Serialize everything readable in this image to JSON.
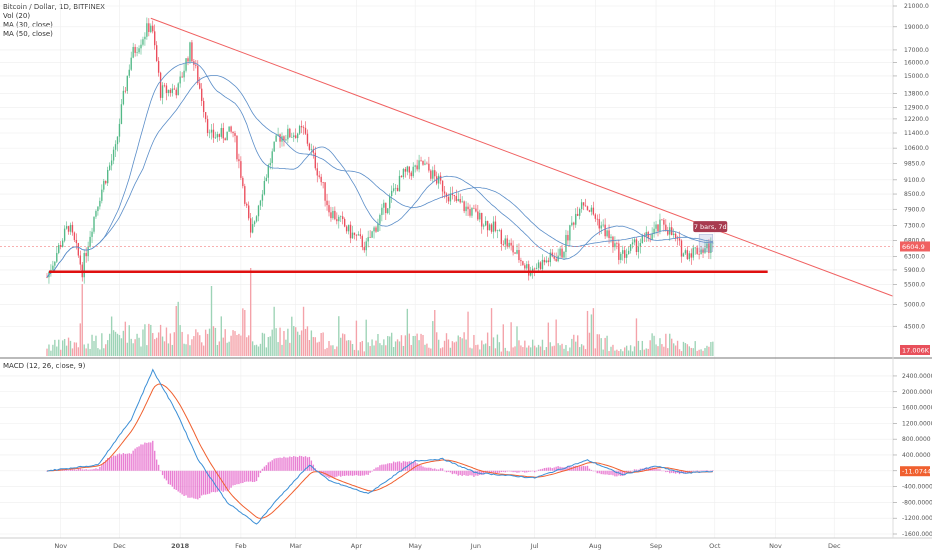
{
  "legend_main": [
    "Bitcoin / Dollar, 1D, BITFINEX",
    "Vol (20)",
    "MA (30, close)",
    "MA (50, close)"
  ],
  "legend_macd": "MACD (12, 26, close, 9)",
  "price_label": "6604.9",
  "vol_label": "17.006K",
  "macd_label": "-11.0744",
  "annotation": "7 bars, 7d",
  "colors": {
    "up": "#53b987",
    "down": "#eb4d5c",
    "vol_up": "#9dd3b6",
    "vol_down": "#f4a2a9",
    "ma30": "#5a8dc8",
    "ma50": "#5a8dc8",
    "macd_line": "#3c8fd6",
    "signal_line": "#f0602f",
    "hist": "#e254c4",
    "trend": "#f06060",
    "support": "#e01010",
    "price_tag": "#f06060",
    "annotation_bg": "#a83a4f",
    "grid": "#eeeeee"
  },
  "chart_data": {
    "type": "candlestick",
    "x_axis_labels": [
      "Nov",
      "Dec",
      "2018",
      "Feb",
      "Mar",
      "Apr",
      "May",
      "Jun",
      "Jul",
      "Aug",
      "Sep",
      "Oct",
      "Nov",
      "Dec"
    ],
    "price_axis_ticks": [
      "21000.0",
      "19000.0",
      "17000.0",
      "16000.0",
      "15000.0",
      "13800.0",
      "12900.0",
      "12200.0",
      "11400.0",
      "10600.0",
      "9850.0",
      "9100.0",
      "8500.0",
      "7900.0",
      "7300.0",
      "6800.0",
      "6300.0",
      "5900.0",
      "5500.0",
      "5000.0",
      "4500.0"
    ],
    "macd_axis_ticks": [
      "2400.0000",
      "2000.0000",
      "1600.0000",
      "1200.0000",
      "800.0000",
      "400.0000",
      "0.0000",
      "-400.0000",
      "-800.0000",
      "-1200.0000",
      "-1600.0000"
    ],
    "price_key_points": [
      [
        "2017-10-25",
        5700
      ],
      [
        "2017-11-05",
        7300
      ],
      [
        "2017-11-12",
        5900
      ],
      [
        "2017-11-20",
        8200
      ],
      [
        "2017-11-29",
        10500
      ],
      [
        "2017-12-07",
        16500
      ],
      [
        "2017-12-17",
        19300
      ],
      [
        "2017-12-22",
        13900
      ],
      [
        "2017-12-31",
        14100
      ],
      [
        "2018-01-06",
        17100
      ],
      [
        "2018-01-16",
        11200
      ],
      [
        "2018-01-28",
        11400
      ],
      [
        "2018-02-06",
        6900
      ],
      [
        "2018-02-20",
        11200
      ],
      [
        "2018-03-05",
        11500
      ],
      [
        "2018-03-18",
        7900
      ],
      [
        "2018-03-28",
        7100
      ],
      [
        "2018-04-06",
        6600
      ],
      [
        "2018-04-25",
        9300
      ],
      [
        "2018-05-05",
        9800
      ],
      [
        "2018-05-20",
        8300
      ],
      [
        "2018-06-10",
        7200
      ],
      [
        "2018-06-28",
        5900
      ],
      [
        "2018-07-15",
        6400
      ],
      [
        "2018-07-25",
        8300
      ],
      [
        "2018-08-14",
        6300
      ],
      [
        "2018-08-30",
        7000
      ],
      [
        "2018-09-05",
        7400
      ],
      [
        "2018-09-15",
        6400
      ],
      [
        "2018-09-30",
        6600
      ]
    ],
    "trendline": {
      "from": [
        "2017-12-17",
        19800
      ],
      "to": [
        "2018-12-31",
        5200
      ]
    },
    "support_line": {
      "value": 5850,
      "from": "2017-10-26",
      "to": "2018-10-28"
    },
    "macd_key_points": [
      [
        "2017-10-25",
        0
      ],
      [
        "2017-11-20",
        150
      ],
      [
        "2017-12-07",
        1300
      ],
      [
        "2017-12-18",
        2550
      ],
      [
        "2017-12-30",
        1500
      ],
      [
        "2018-01-10",
        300
      ],
      [
        "2018-01-25",
        -800
      ],
      [
        "2018-02-09",
        -1350
      ],
      [
        "2018-02-20",
        -700
      ],
      [
        "2018-03-08",
        150
      ],
      [
        "2018-03-18",
        -250
      ],
      [
        "2018-04-07",
        -580
      ],
      [
        "2018-05-01",
        250
      ],
      [
        "2018-05-15",
        300
      ],
      [
        "2018-06-01",
        -50
      ],
      [
        "2018-07-01",
        -180
      ],
      [
        "2018-07-28",
        270
      ],
      [
        "2018-08-15",
        -100
      ],
      [
        "2018-09-01",
        120
      ],
      [
        "2018-09-15",
        -60
      ],
      [
        "2018-09-30",
        -11
      ]
    ]
  }
}
